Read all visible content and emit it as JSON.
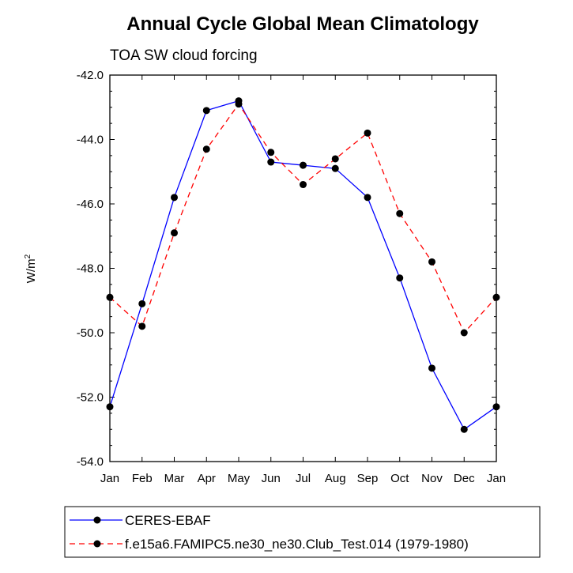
{
  "chart_data": {
    "type": "line",
    "title": "Annual Cycle Global Mean Climatology",
    "subtitle": "TOA SW cloud forcing",
    "xlabel": "",
    "ylabel": "W/m",
    "ylabel_superscript": "2",
    "categories": [
      "Jan",
      "Feb",
      "Mar",
      "Apr",
      "May",
      "Jun",
      "Jul",
      "Aug",
      "Sep",
      "Oct",
      "Nov",
      "Dec",
      "Jan"
    ],
    "ylim": [
      -54.0,
      -42.0
    ],
    "yticks": [
      "-42.0",
      "-44.0",
      "-46.0",
      "-48.0",
      "-50.0",
      "-52.0",
      "-54.0"
    ],
    "ytick_values": [
      -42,
      -44,
      -46,
      -48,
      -50,
      -52,
      -54
    ],
    "grid": false,
    "legend_position": "bottom",
    "series": [
      {
        "name": "CERES-EBAF",
        "color": "#0000ff",
        "style": "solid",
        "marker": "filled-circle",
        "values": [
          -52.3,
          -49.1,
          -45.8,
          -43.1,
          -42.8,
          -44.7,
          -44.8,
          -44.9,
          -45.8,
          -48.3,
          -51.1,
          -53.0,
          -52.3
        ]
      },
      {
        "name": "f.e15a6.FAMIPC5.ne30_ne30.Club_Test.014 (1979-1980)",
        "color": "#ff0000",
        "style": "dashed",
        "marker": "filled-circle",
        "values": [
          -48.9,
          -49.8,
          -46.9,
          -44.3,
          -42.9,
          -44.4,
          -45.4,
          -44.6,
          -43.8,
          -46.3,
          -47.8,
          -50.0,
          -48.9
        ]
      }
    ]
  }
}
